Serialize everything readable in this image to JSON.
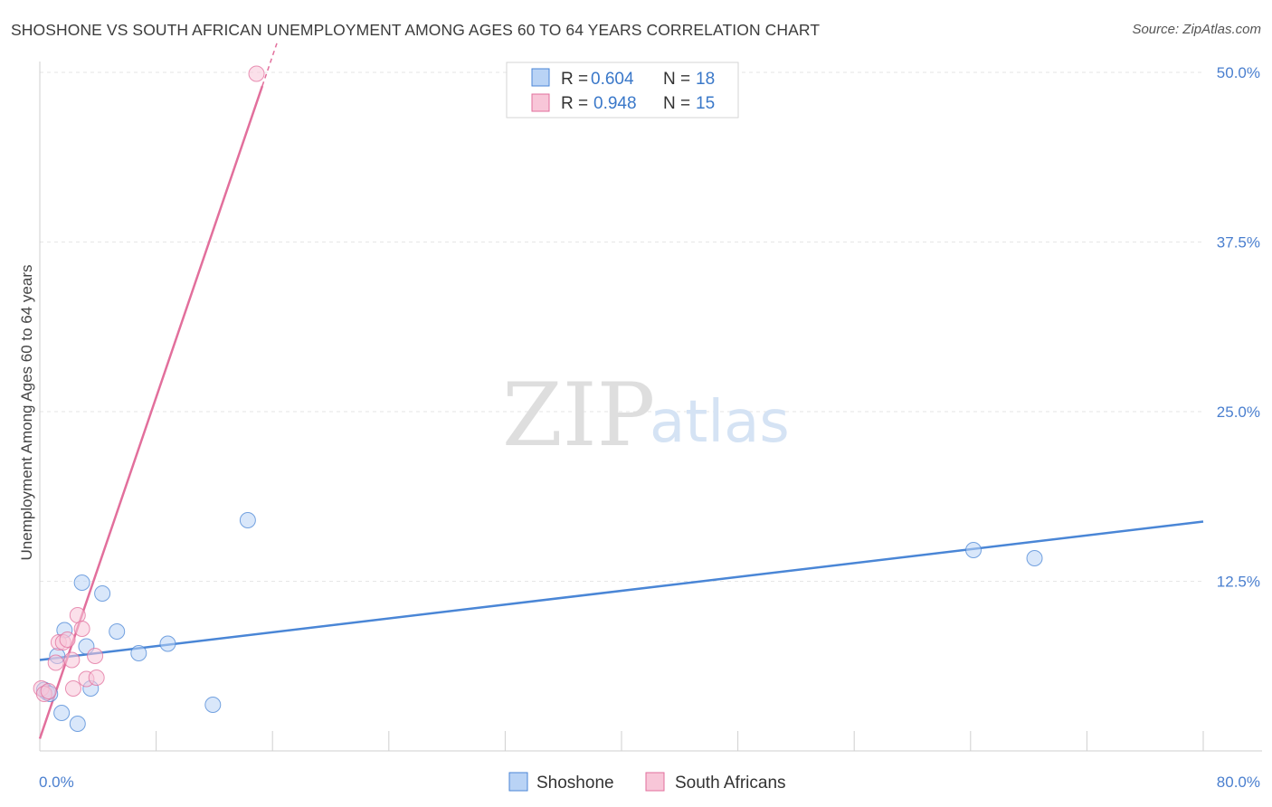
{
  "title": "SHOSHONE VS SOUTH AFRICAN UNEMPLOYMENT AMONG AGES 60 TO 64 YEARS CORRELATION CHART",
  "source": "Source: ZipAtlas.com",
  "watermark": {
    "zip": "ZIP",
    "atlas": "atlas"
  },
  "colors": {
    "shoshone": "#4a86d6",
    "shoshone_fill": "#b9d3f5",
    "south_africans": "#e26f9c",
    "south_africans_fill": "#f8c6d8"
  },
  "legend": {
    "rows": [
      {
        "r_label": "R = ",
        "r_value": "0.604",
        "n_label": "N = ",
        "n_value": "18"
      },
      {
        "r_label": "R = ",
        "r_value": "0.948",
        "n_label": "N = ",
        "n_value": "15"
      }
    ]
  },
  "chart_data": {
    "type": "scatter",
    "title": "SHOSHONE VS SOUTH AFRICAN UNEMPLOYMENT AMONG AGES 60 TO 64 YEARS CORRELATION CHART",
    "xlabel": "",
    "ylabel": "Unemployment Among Ages 60 to 64 years",
    "xlim": [
      0,
      80
    ],
    "ylim": [
      0,
      50
    ],
    "x_tick_labels": [
      "0.0%",
      "80.0%"
    ],
    "y_ticks": [
      12.5,
      25.0,
      37.5,
      50.0
    ],
    "y_tick_labels": [
      "12.5%",
      "25.0%",
      "37.5%",
      "50.0%"
    ],
    "series": [
      {
        "name": "Shoshone",
        "points": [
          [
            0.3,
            4.5
          ],
          [
            0.5,
            4.3
          ],
          [
            0.7,
            4.2
          ],
          [
            1.2,
            7.0
          ],
          [
            1.5,
            2.8
          ],
          [
            1.7,
            8.9
          ],
          [
            2.6,
            2.0
          ],
          [
            2.9,
            12.4
          ],
          [
            3.2,
            7.7
          ],
          [
            3.5,
            4.6
          ],
          [
            4.3,
            11.6
          ],
          [
            5.3,
            8.8
          ],
          [
            6.8,
            7.2
          ],
          [
            8.8,
            7.9
          ],
          [
            11.9,
            3.4
          ],
          [
            14.3,
            17.0
          ],
          [
            64.2,
            14.8
          ],
          [
            68.4,
            14.2
          ]
        ],
        "trend": {
          "x": [
            0,
            80
          ],
          "y": [
            6.7,
            16.9
          ]
        }
      },
      {
        "name": "South Africans",
        "points": [
          [
            0.1,
            4.6
          ],
          [
            0.3,
            4.2
          ],
          [
            0.6,
            4.4
          ],
          [
            1.1,
            6.5
          ],
          [
            1.3,
            8.0
          ],
          [
            1.6,
            8.0
          ],
          [
            1.9,
            8.2
          ],
          [
            2.2,
            6.7
          ],
          [
            2.3,
            4.6
          ],
          [
            2.6,
            10.0
          ],
          [
            2.9,
            9.0
          ],
          [
            3.2,
            5.3
          ],
          [
            3.8,
            7.0
          ],
          [
            3.9,
            5.4
          ],
          [
            14.9,
            49.9
          ]
        ],
        "trend": {
          "x": [
            0,
            15.3
          ],
          "y": [
            0.9,
            49.0
          ]
        }
      }
    ]
  },
  "bottom_legend": [
    "Shoshone",
    "South Africans"
  ]
}
